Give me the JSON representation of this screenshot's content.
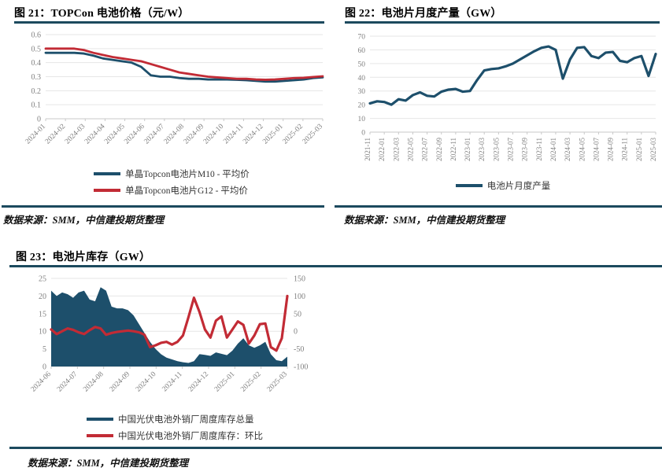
{
  "colors": {
    "divider_teal": "#1C4A5E",
    "series_blue": "#1D4F6B",
    "series_red": "#C22B35",
    "axis_text_gray": "#808080",
    "grid_gray": "#E6E6E6"
  },
  "chart_data": [
    {
      "id": "fig21",
      "type": "line",
      "title": "图 21：TOPCon 电池价格（元/W）",
      "source": "数据来源：SMM，中信建投期货整理",
      "x_tick_labels": [
        "2024-01",
        "2024-02",
        "2024-03",
        "2024-04",
        "2024-05",
        "2024-06",
        "2024-07",
        "2024-08",
        "2024-09",
        "2024-10",
        "2024-11",
        "2024-12",
        "2025-01",
        "2025-02",
        "2025-03"
      ],
      "ylim": [
        0,
        0.6
      ],
      "yticks": [
        0,
        0.1,
        0.2,
        0.3,
        0.4,
        0.5,
        0.6
      ],
      "grid": "horizontal",
      "legend_position": "bottom",
      "series": [
        {
          "name": "单晶Topcon电池片M10 - 平均价",
          "color": "#1D4F6B",
          "render": "line",
          "values": [
            0.47,
            0.47,
            0.47,
            0.47,
            0.465,
            0.45,
            0.43,
            0.42,
            0.41,
            0.4,
            0.37,
            0.31,
            0.3,
            0.3,
            0.29,
            0.285,
            0.285,
            0.28,
            0.28,
            0.28,
            0.278,
            0.275,
            0.27,
            0.265,
            0.265,
            0.27,
            0.275,
            0.28,
            0.29,
            0.295
          ]
        },
        {
          "name": "单晶Topcon电池片G12 - 平均价",
          "color": "#C22B35",
          "render": "line",
          "values": [
            0.5,
            0.5,
            0.5,
            0.5,
            0.49,
            0.47,
            0.455,
            0.44,
            0.43,
            0.42,
            0.41,
            0.39,
            0.37,
            0.35,
            0.33,
            0.32,
            0.31,
            0.3,
            0.295,
            0.29,
            0.285,
            0.285,
            0.28,
            0.278,
            0.28,
            0.285,
            0.29,
            0.292,
            0.298,
            0.303
          ]
        }
      ]
    },
    {
      "id": "fig22",
      "type": "line",
      "title": "图 22：电池片月度产量（GW）",
      "source": "数据来源：SMM，中信建投期货整理",
      "x_tick_labels": [
        "2021-11",
        "2022-01",
        "2022-03",
        "2022-05",
        "2022-07",
        "2022-09",
        "2022-11",
        "2023-01",
        "2023-03",
        "2023-05",
        "2023-07",
        "2023-09",
        "2023-11",
        "2024-01",
        "2024-03",
        "2024-05",
        "2024-07",
        "2024-09",
        "2024-11",
        "2025-01",
        "2025-03"
      ],
      "ylim": [
        0,
        70
      ],
      "yticks": [
        0,
        10,
        20,
        30,
        40,
        50,
        60,
        70
      ],
      "grid": "horizontal",
      "legend_position": "bottom",
      "series": [
        {
          "name": "电池片月度产量",
          "color": "#1D4F6B",
          "render": "line",
          "values": [
            21,
            22.5,
            22,
            20,
            24,
            23,
            27,
            29,
            26.5,
            26,
            29.5,
            31,
            31.5,
            29.5,
            30,
            38,
            45,
            46,
            46.5,
            48,
            50,
            53,
            56,
            59,
            61.5,
            62.5,
            60,
            39,
            53,
            61.5,
            62,
            55.5,
            54,
            58,
            58.5,
            52,
            51,
            54,
            55.5,
            41,
            57
          ]
        }
      ]
    },
    {
      "id": "fig23",
      "type": "area+line",
      "title": "图 23：电池片库存（GW）",
      "source": "数据来源：SMM，中信建投期货整理",
      "x_tick_labels": [
        "2024-06",
        "2024-07",
        "2024-08",
        "2024-09",
        "2024-10",
        "2024-11",
        "2024-12",
        "2025-01",
        "2025-02",
        "2025-03"
      ],
      "left_ylim": [
        0,
        25
      ],
      "left_yticks": [
        0,
        5,
        10,
        15,
        20,
        25
      ],
      "right_ylim": [
        -100,
        150
      ],
      "right_yticks": [
        -100,
        -50,
        0,
        50,
        100,
        150
      ],
      "grid": "horizontal",
      "legend_position": "bottom",
      "series": [
        {
          "name": "中国光伏电池外销厂周度库存总量",
          "color": "#1D4F6B",
          "render": "area",
          "axis": "left",
          "values": [
            21.5,
            20,
            21,
            20.5,
            19.5,
            21,
            21.5,
            19,
            18.5,
            22.5,
            21.5,
            17,
            16.5,
            16.5,
            16,
            14.5,
            12,
            9.5,
            7,
            5,
            3.5,
            2.5,
            2,
            1.5,
            1.2,
            1,
            1.5,
            3.5,
            3.3,
            3,
            4,
            3.6,
            3.2,
            4.5,
            6.5,
            8,
            6,
            5.3,
            6,
            7,
            3.5,
            1.8,
            1.5,
            2.8
          ]
        },
        {
          "name": "中国光伏电池外销厂周度库存：环比",
          "color": "#C22B35",
          "render": "line",
          "axis": "right",
          "values": [
            5,
            -8,
            0,
            8,
            4,
            -3,
            -8,
            3,
            12,
            8,
            -10,
            -5,
            -2,
            0,
            2,
            0,
            -3,
            -10,
            -45,
            -40,
            -33,
            -30,
            -38,
            -30,
            -12,
            40,
            95,
            55,
            5,
            -18,
            30,
            42,
            -18,
            5,
            28,
            18,
            -35,
            -12,
            20,
            22,
            -45,
            -55,
            -20,
            100
          ]
        }
      ]
    }
  ]
}
